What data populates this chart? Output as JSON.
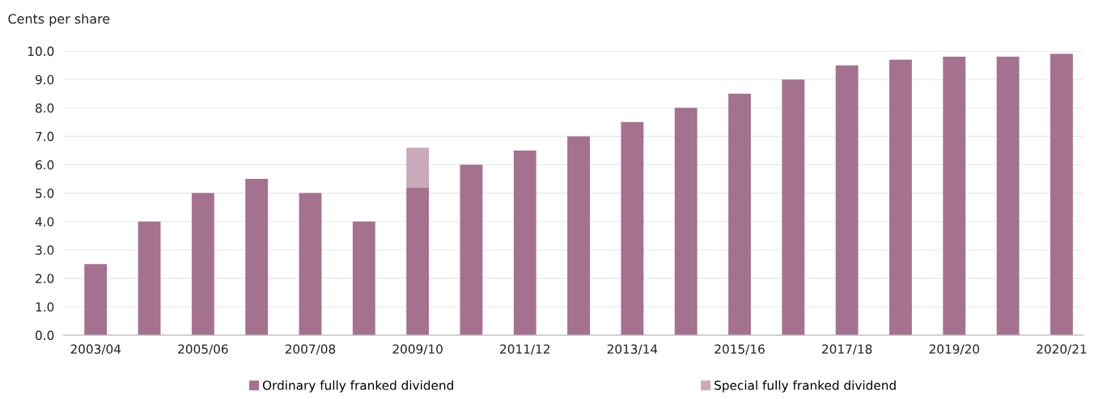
{
  "chart_data": {
    "type": "bar",
    "stacked": true,
    "ylabel": "Cents per share",
    "categories": [
      "2003/04",
      null,
      "2005/06",
      null,
      "2007/08",
      null,
      "2009/10",
      null,
      "2011/12",
      null,
      "2013/14",
      null,
      "2015/16",
      null,
      "2017/18",
      null,
      "2019/20",
      null,
      "2020/21"
    ],
    "series": [
      {
        "name": "Ordinary fully franked dividend",
        "color": "#a4728e",
        "values": [
          2.5,
          4.0,
          5.0,
          5.5,
          5.0,
          4.0,
          5.2,
          6.0,
          6.5,
          7.0,
          7.5,
          8.0,
          8.5,
          9.0,
          9.5,
          9.7,
          9.8,
          9.8,
          9.9
        ]
      },
      {
        "name": "Special fully franked dividend",
        "color": "#c9a9ba",
        "values": [
          null,
          null,
          null,
          null,
          null,
          null,
          1.4,
          null,
          null,
          null,
          null,
          null,
          null,
          null,
          null,
          null,
          null,
          null,
          null
        ]
      }
    ],
    "ylim": [
      0,
      10
    ],
    "yticks": [
      {
        "value": 0,
        "label": "0.0"
      },
      {
        "value": 1,
        "label": "1.0"
      },
      {
        "value": 2,
        "label": "2.0"
      },
      {
        "value": 3,
        "label": "3.0"
      },
      {
        "value": 4,
        "label": "4.0"
      },
      {
        "value": 5,
        "label": "5.0"
      },
      {
        "value": 6,
        "label": "6.0"
      },
      {
        "value": 7,
        "label": "7.0"
      },
      {
        "value": 8,
        "label": "8.0"
      },
      {
        "value": 9,
        "label": "9.0"
      },
      {
        "value": 10,
        "label": "10.0"
      }
    ],
    "grid": "y",
    "legend": "bottom"
  }
}
